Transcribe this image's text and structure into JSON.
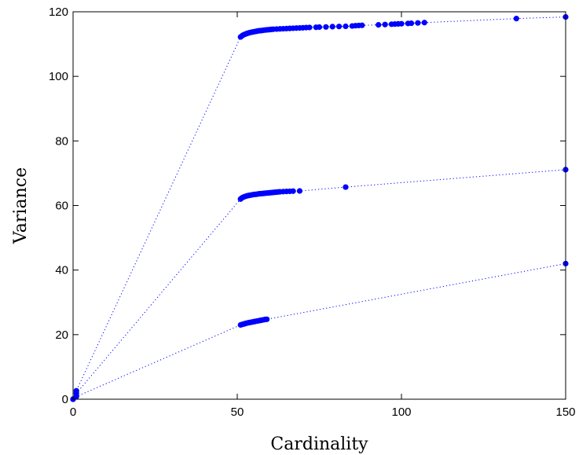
{
  "chart_data": {
    "type": "scatter",
    "title": "",
    "xlabel": "Cardinality",
    "ylabel": "Variance",
    "xlim": [
      0,
      150
    ],
    "ylim": [
      0,
      120
    ],
    "x_ticks": [
      0,
      50,
      100,
      150
    ],
    "y_ticks": [
      0,
      20,
      40,
      60,
      80,
      100,
      120
    ],
    "grid": false,
    "legend": "none",
    "marker_color": "#0000ff",
    "line_style": "dotted",
    "series": [
      {
        "points": [
          [
            0,
            0
          ],
          [
            1,
            2.6
          ],
          [
            51,
            112.2
          ],
          [
            51.5,
            112.6
          ],
          [
            52,
            112.9
          ],
          [
            52.5,
            113.1
          ],
          [
            53,
            113.3
          ],
          [
            53.5,
            113.45
          ],
          [
            54,
            113.6
          ],
          [
            54.5,
            113.7
          ],
          [
            55,
            113.8
          ],
          [
            55.5,
            113.9
          ],
          [
            56,
            114.0
          ],
          [
            56.5,
            114.1
          ],
          [
            57,
            114.15
          ],
          [
            57.5,
            114.2
          ],
          [
            58,
            114.3
          ],
          [
            58.5,
            114.35
          ],
          [
            59,
            114.4
          ],
          [
            59.5,
            114.45
          ],
          [
            60,
            114.5
          ],
          [
            60.5,
            114.55
          ],
          [
            61,
            114.6
          ],
          [
            62,
            114.65
          ],
          [
            63,
            114.7
          ],
          [
            64,
            114.75
          ],
          [
            65,
            114.8
          ],
          [
            66,
            114.85
          ],
          [
            67,
            114.9
          ],
          [
            68,
            114.95
          ],
          [
            69,
            115.0
          ],
          [
            70,
            115.05
          ],
          [
            71,
            115.1
          ],
          [
            72,
            115.15
          ],
          [
            74,
            115.2
          ],
          [
            75,
            115.25
          ],
          [
            77,
            115.3
          ],
          [
            79,
            115.4
          ],
          [
            81,
            115.45
          ],
          [
            83,
            115.5
          ],
          [
            85,
            115.6
          ],
          [
            86,
            115.7
          ],
          [
            87,
            115.75
          ],
          [
            88,
            115.8
          ],
          [
            93,
            115.95
          ],
          [
            95,
            116.05
          ],
          [
            97,
            116.15
          ],
          [
            98,
            116.2
          ],
          [
            99,
            116.25
          ],
          [
            100,
            116.3
          ],
          [
            102,
            116.4
          ],
          [
            103,
            116.45
          ],
          [
            105,
            116.55
          ],
          [
            107,
            116.65
          ],
          [
            135,
            117.9
          ],
          [
            150,
            118.4
          ]
        ]
      },
      {
        "points": [
          [
            0,
            0
          ],
          [
            1,
            1.8
          ],
          [
            51,
            62.0
          ],
          [
            51.5,
            62.4
          ],
          [
            52,
            62.65
          ],
          [
            52.5,
            62.85
          ],
          [
            53,
            63.0
          ],
          [
            53.5,
            63.1
          ],
          [
            54,
            63.2
          ],
          [
            54.5,
            63.3
          ],
          [
            55,
            63.4
          ],
          [
            55.5,
            63.45
          ],
          [
            56,
            63.5
          ],
          [
            56.5,
            63.6
          ],
          [
            57,
            63.65
          ],
          [
            57.5,
            63.7
          ],
          [
            58,
            63.75
          ],
          [
            58.5,
            63.8
          ],
          [
            59,
            63.85
          ],
          [
            59.5,
            63.9
          ],
          [
            60,
            63.95
          ],
          [
            60.5,
            64.0
          ],
          [
            61,
            64.05
          ],
          [
            61.5,
            64.1
          ],
          [
            62,
            64.15
          ],
          [
            62.5,
            64.2
          ],
          [
            63,
            64.25
          ],
          [
            64,
            64.3
          ],
          [
            65,
            64.35
          ],
          [
            66,
            64.4
          ],
          [
            67,
            64.45
          ],
          [
            69,
            64.5
          ],
          [
            83,
            65.7
          ],
          [
            150,
            71.1
          ]
        ]
      },
      {
        "points": [
          [
            0,
            0
          ],
          [
            1,
            0.8
          ],
          [
            51,
            23.0
          ],
          [
            51.5,
            23.15
          ],
          [
            52,
            23.3
          ],
          [
            52.5,
            23.45
          ],
          [
            53,
            23.6
          ],
          [
            53.5,
            23.7
          ],
          [
            54,
            23.8
          ],
          [
            54.5,
            23.9
          ],
          [
            55,
            24.0
          ],
          [
            55.5,
            24.1
          ],
          [
            56,
            24.2
          ],
          [
            56.5,
            24.3
          ],
          [
            57,
            24.4
          ],
          [
            57.5,
            24.5
          ],
          [
            58,
            24.6
          ],
          [
            58.5,
            24.7
          ],
          [
            59,
            24.75
          ],
          [
            150,
            42.0
          ]
        ]
      }
    ]
  }
}
